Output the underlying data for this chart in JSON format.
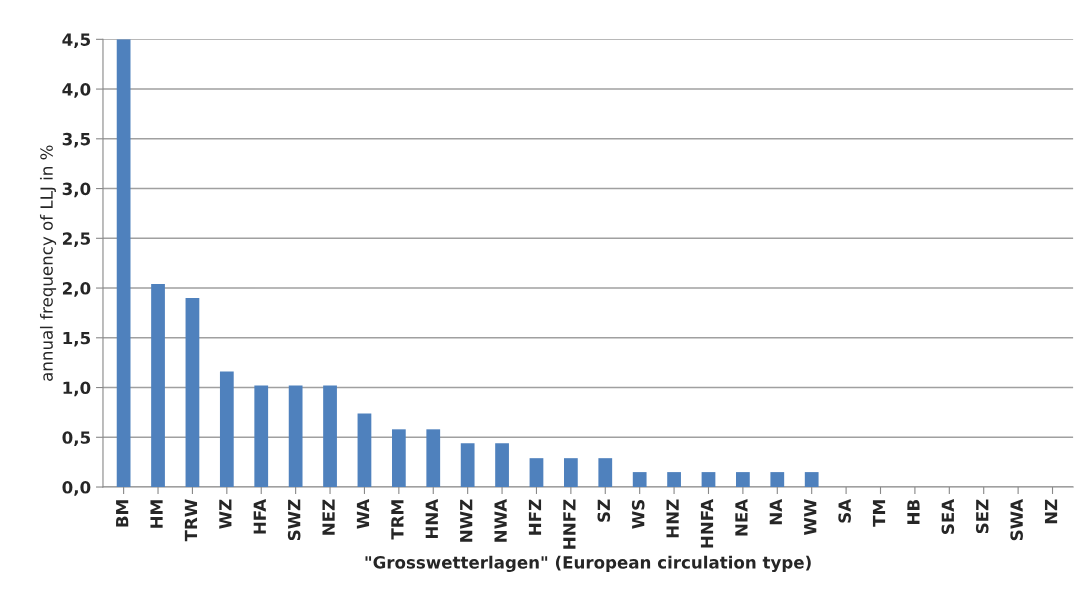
{
  "chart_data": {
    "type": "bar",
    "xlabel": "\"Grosswetterlagen\" (European circulation type)",
    "ylabel": "annual frequency of LLJ in %",
    "categories": [
      "BM",
      "HM",
      "TRW",
      "WZ",
      "HFA",
      "SWZ",
      "NEZ",
      "WA",
      "TRM",
      "HNA",
      "NWZ",
      "NWA",
      "HFZ",
      "HNFZ",
      "SZ",
      "WS",
      "HNZ",
      "HNFA",
      "NEA",
      "NA",
      "WW",
      "SA",
      "TM",
      "HB",
      "SEA",
      "SEZ",
      "SWA",
      "NZ"
    ],
    "values": [
      4.5,
      2.04,
      1.9,
      1.16,
      1.02,
      1.02,
      1.02,
      0.74,
      0.58,
      0.58,
      0.44,
      0.44,
      0.29,
      0.29,
      0.29,
      0.15,
      0.15,
      0.15,
      0.15,
      0.15,
      0.15,
      0,
      0,
      0,
      0,
      0,
      0,
      0
    ],
    "color": "#4f81bd",
    "ylim": [
      0,
      4.5
    ],
    "yticks": [
      {
        "value": 0,
        "label": "0,0"
      },
      {
        "value": 0.5,
        "label": "0,5"
      },
      {
        "value": 1,
        "label": "1,0"
      },
      {
        "value": 1.5,
        "label": "1,5"
      },
      {
        "value": 2,
        "label": "2,0"
      },
      {
        "value": 2.5,
        "label": "2,5"
      },
      {
        "value": 3,
        "label": "3,0"
      },
      {
        "value": 3.5,
        "label": "3,5"
      },
      {
        "value": 4,
        "label": "4,0"
      },
      {
        "value": 4.5,
        "label": "4,5"
      }
    ],
    "grid": "y"
  }
}
